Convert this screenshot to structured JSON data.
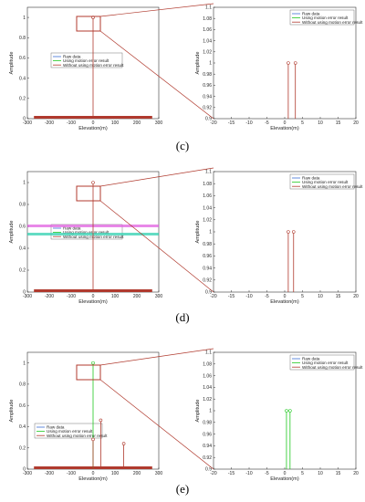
{
  "colors": {
    "raw": "#3d6fd6",
    "using": "#1fc81f",
    "without": "#b03a2e",
    "zoom_link": "#b03a2e",
    "axis": "#333333"
  },
  "chart_data": [
    {
      "id": "c",
      "panel_label": "(c)",
      "type": "stem",
      "left": {
        "xlim": [
          -300,
          300
        ],
        "ylim": [
          0,
          1.1
        ],
        "xticks": [
          "-300",
          "-200",
          "-100",
          "0",
          "100",
          "200",
          "300"
        ],
        "yticks": [
          "0",
          "0.2",
          "0.4",
          "0.6",
          "0.8",
          "1"
        ],
        "xlabel": "Elevation(m)",
        "ylabel": "Amplitude",
        "legend": [
          "Raw data",
          "Using motion error result",
          "Without using motion error result"
        ],
        "legend_fill": "#ffffff",
        "stems": [
          {
            "series": "without",
            "x": 0,
            "y": 1.0,
            "marker": true
          }
        ],
        "baseline": {
          "series": "without",
          "from": -270,
          "to": 270
        }
      },
      "right": {
        "xlim": [
          -20,
          20
        ],
        "ylim": [
          0.9,
          1.1
        ],
        "xticks": [
          "-20",
          "-15",
          "-10",
          "-5",
          "0",
          "5",
          "10",
          "15",
          "20"
        ],
        "yticks": [
          "0.9",
          "0.92",
          "0.94",
          "0.96",
          "0.98",
          "1",
          "1.02",
          "1.04",
          "1.06",
          "1.08",
          "1.1"
        ],
        "xlabel": "Elevation(m)",
        "ylabel": "Amplitude",
        "legend": [
          "Raw data",
          "Using motion error result",
          "Without using motion error result"
        ],
        "stems": [
          {
            "series": "without",
            "x": 1,
            "y": 1.0,
            "marker": true
          },
          {
            "series": "without",
            "x": 3,
            "y": 1.0,
            "marker": true
          }
        ]
      }
    },
    {
      "id": "d",
      "panel_label": "(d)",
      "type": "stem",
      "left": {
        "xlim": [
          -300,
          300
        ],
        "ylim": [
          0,
          1.1
        ],
        "xticks": [
          "-300",
          "-200",
          "-100",
          "0",
          "100",
          "200",
          "300"
        ],
        "yticks": [
          "0",
          "0.2",
          "0.4",
          "0.6",
          "0.8",
          "1"
        ],
        "xlabel": "Elevation(m)",
        "ylabel": "Amplitude",
        "legend": [
          "Raw data",
          "Using motion error result",
          "Without using motion error result"
        ],
        "legend_fill": "none",
        "stems": [
          {
            "series": "without",
            "x": 0,
            "y": 1.0,
            "marker": true
          }
        ],
        "baseline": {
          "series": "without",
          "from": -270,
          "to": 270
        }
      },
      "right": {
        "xlim": [
          -20,
          20
        ],
        "ylim": [
          0.9,
          1.1
        ],
        "xticks": [
          "-20",
          "-15",
          "-10",
          "-5",
          "0",
          "5",
          "10",
          "15",
          "20"
        ],
        "yticks": [
          "0.9",
          "0.92",
          "0.94",
          "0.96",
          "0.98",
          "1",
          "1.02",
          "1.04",
          "1.06",
          "1.08",
          "1.1"
        ],
        "xlabel": "Elevation(m)",
        "ylabel": "Amplitude",
        "legend": [
          "Raw data",
          "Using motion error result",
          "Without using motion error result"
        ],
        "stems": [
          {
            "series": "without",
            "x": 1,
            "y": 1.0,
            "marker": true
          },
          {
            "series": "without",
            "x": 2.5,
            "y": 1.0,
            "marker": true
          }
        ]
      }
    },
    {
      "id": "e",
      "panel_label": "(e)",
      "type": "stem",
      "left": {
        "xlim": [
          -300,
          300
        ],
        "ylim": [
          0,
          1.1
        ],
        "xticks": [
          "-300",
          "-200",
          "-100",
          "0",
          "100",
          "200",
          "300"
        ],
        "yticks": [
          "0",
          "0.2",
          "0.4",
          "0.6",
          "0.8",
          "1"
        ],
        "xlabel": "Elevation(m)",
        "ylabel": "Amplitude",
        "legend": [
          "Raw data",
          "Using motion error result",
          "Without using motion error result"
        ],
        "legend_fill": "#ffffff",
        "stems": [
          {
            "series": "using",
            "x": 0,
            "y": 1.0,
            "marker": true
          },
          {
            "series": "without",
            "x": 0,
            "y": 0.28,
            "marker": true
          },
          {
            "series": "without",
            "x": 35,
            "y": 0.46,
            "marker": true
          },
          {
            "series": "without",
            "x": 140,
            "y": 0.24,
            "marker": true
          }
        ],
        "baseline": {
          "series": "without",
          "from": -270,
          "to": 270
        }
      },
      "right": {
        "xlim": [
          -20,
          20
        ],
        "ylim": [
          0.9,
          1.1
        ],
        "xticks": [
          "-20",
          "-15",
          "-10",
          "-5",
          "0",
          "5",
          "10",
          "15",
          "20"
        ],
        "yticks": [
          "0.9",
          "0.92",
          "0.94",
          "0.96",
          "0.98",
          "1",
          "1.02",
          "1.04",
          "1.06",
          "1.08",
          "1.1"
        ],
        "xlabel": "Elevation(m)",
        "ylabel": "Amplitude",
        "legend": [
          "Raw data",
          "Using motion error result",
          "Without using motion error result"
        ],
        "stems": [
          {
            "series": "using",
            "x": 0.5,
            "y": 1.0,
            "marker": true
          },
          {
            "series": "using",
            "x": 1.5,
            "y": 1.0,
            "marker": true
          }
        ]
      }
    }
  ]
}
